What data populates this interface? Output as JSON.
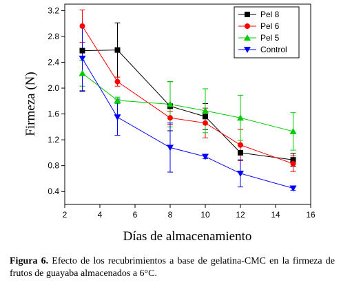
{
  "chart_data": {
    "type": "line",
    "title": "",
    "xlabel": "Días de almacenamiento",
    "ylabel": "Firmeza (N)",
    "xlim": [
      2,
      16
    ],
    "ylim": [
      0.2,
      3.3
    ],
    "xticks": [
      2,
      4,
      6,
      8,
      10,
      12,
      14,
      16
    ],
    "yticks": [
      0.4,
      0.8,
      1.2,
      1.6,
      2.0,
      2.4,
      2.8,
      3.2
    ],
    "xtick_labels": [
      "2",
      "4",
      "6",
      "8",
      "10",
      "12",
      "14",
      "16"
    ],
    "ytick_labels": [
      "0.4",
      "0.8",
      "1.2",
      "1.6",
      "2.0",
      "2.4",
      "2.8",
      "3.2"
    ],
    "grid": false,
    "legend_position": "top-right",
    "x": [
      3,
      5,
      8,
      10,
      12,
      15
    ],
    "series": [
      {
        "name": "Pel 8",
        "color": "#000000",
        "marker": "square",
        "values": [
          2.58,
          2.59,
          1.72,
          1.56,
          1.0,
          0.89
        ],
        "errors": [
          0.63,
          0.42,
          0.38,
          0.2,
          0.12,
          0.1
        ]
      },
      {
        "name": "Pel 6",
        "color": "#ff0000",
        "marker": "circle",
        "values": [
          2.96,
          2.1,
          1.54,
          1.46,
          1.12,
          0.83
        ],
        "errors": [
          0.25,
          0.07,
          0.1,
          0.23,
          0.24,
          0.12
        ]
      },
      {
        "name": "Pel 5",
        "color": "#00cc00",
        "marker": "triangle-up",
        "values": [
          2.23,
          1.81,
          1.75,
          1.65,
          1.54,
          1.33
        ],
        "errors": [
          0.2,
          0.05,
          0.35,
          0.34,
          0.35,
          0.29
        ]
      },
      {
        "name": "Control",
        "color": "#0000ff",
        "marker": "triangle-down",
        "values": [
          2.46,
          1.55,
          1.08,
          0.94,
          0.68,
          0.45
        ],
        "errors": [
          0.5,
          0.28,
          0.38,
          0.03,
          0.21,
          0.03
        ]
      }
    ]
  },
  "caption": {
    "label": "Figura 6.",
    "text": " Efecto de los recubrimientos a base de gelatina-CMC en la firmeza de frutos de guayaba almacenados a 6°C."
  }
}
